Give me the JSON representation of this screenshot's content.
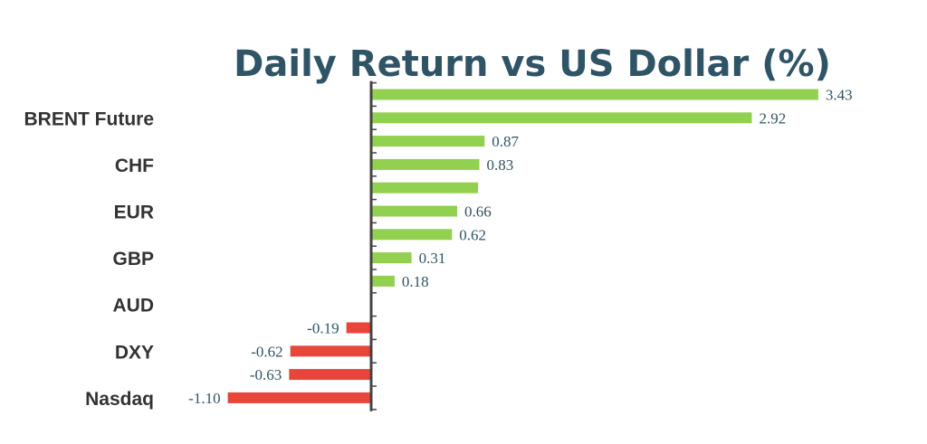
{
  "chart_data": {
    "type": "bar",
    "orientation": "horizontal",
    "title": "Daily Return vs US Dollar (%)",
    "xlabel": "",
    "ylabel": "",
    "categories": [
      "",
      "BRENT Future",
      "",
      "CHF",
      "",
      "EUR",
      "",
      "GBP",
      "",
      "AUD",
      "",
      "DXY",
      "",
      "Nasdaq"
    ],
    "values": [
      3.43,
      2.92,
      0.87,
      0.83,
      0.82,
      0.66,
      0.62,
      0.31,
      0.18,
      0.0,
      -0.19,
      -0.62,
      -0.63,
      -1.1
    ],
    "value_labels": [
      "3.43",
      "2.92",
      "0.87",
      "0.83",
      "",
      "0.66",
      "0.62",
      "0.31",
      "0.18",
      "",
      "-0.19",
      "-0.62",
      "-0.63",
      "-1.10"
    ],
    "xlim": [
      -1.3,
      3.6
    ],
    "grid": false,
    "legend": "none",
    "colors": {
      "positive": "#92d050",
      "negative": "#e8463a",
      "axis": "#444444"
    }
  }
}
